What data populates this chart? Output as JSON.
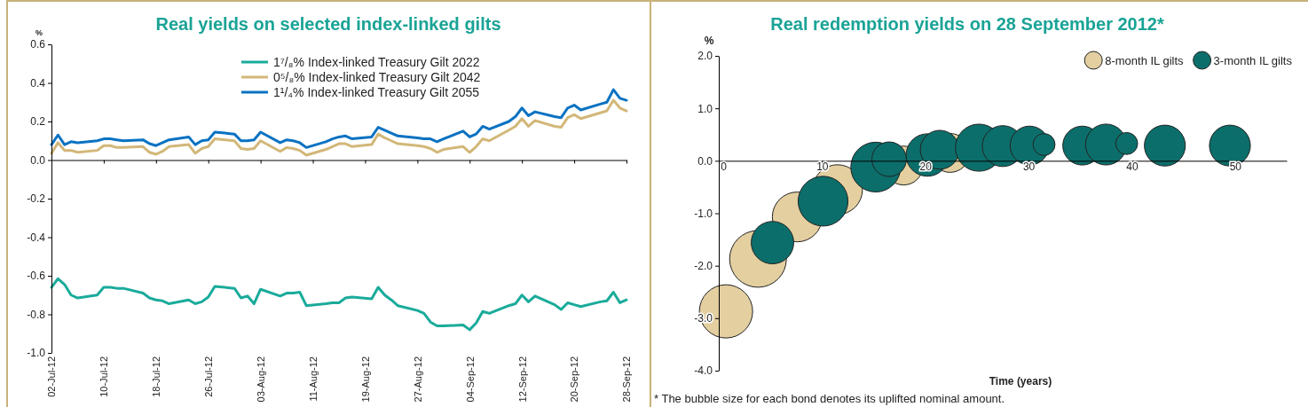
{
  "chart_data": [
    {
      "type": "line",
      "title": "Real yields on selected index-linked gilts",
      "ylabel": "%",
      "legend": "top",
      "x": [
        "2012-07-02",
        "2012-07-03",
        "2012-07-04",
        "2012-07-05",
        "2012-07-06",
        "2012-07-09",
        "2012-07-10",
        "2012-07-11",
        "2012-07-12",
        "2012-07-13",
        "2012-07-16",
        "2012-07-17",
        "2012-07-18",
        "2012-07-19",
        "2012-07-20",
        "2012-07-23",
        "2012-07-24",
        "2012-07-25",
        "2012-07-26",
        "2012-07-27",
        "2012-07-30",
        "2012-07-31",
        "2012-08-01",
        "2012-08-02",
        "2012-08-03",
        "2012-08-06",
        "2012-08-07",
        "2012-08-08",
        "2012-08-09",
        "2012-08-10",
        "2012-08-13",
        "2012-08-14",
        "2012-08-15",
        "2012-08-16",
        "2012-08-17",
        "2012-08-20",
        "2012-08-21",
        "2012-08-22",
        "2012-08-23",
        "2012-08-24",
        "2012-08-27",
        "2012-08-28",
        "2012-08-29",
        "2012-08-30",
        "2012-08-31",
        "2012-09-03",
        "2012-09-04",
        "2012-09-05",
        "2012-09-06",
        "2012-09-07",
        "2012-09-10",
        "2012-09-11",
        "2012-09-12",
        "2012-09-13",
        "2012-09-14",
        "2012-09-17",
        "2012-09-18",
        "2012-09-19",
        "2012-09-20",
        "2012-09-21",
        "2012-09-24",
        "2012-09-25",
        "2012-09-26",
        "2012-09-27",
        "2012-09-28"
      ],
      "xlim": [
        "2012-07-02",
        "2012-09-28"
      ],
      "xticks": [
        {
          "value": "2012-07-02",
          "label": "02-Jul-12"
        },
        {
          "value": "2012-07-10",
          "label": "10-Jul-12"
        },
        {
          "value": "2012-07-18",
          "label": "18-Jul-12"
        },
        {
          "value": "2012-07-26",
          "label": "26-Jul-12"
        },
        {
          "value": "2012-08-03",
          "label": "03-Aug-12"
        },
        {
          "value": "2012-08-11",
          "label": "11-Aug-12"
        },
        {
          "value": "2012-08-19",
          "label": "19-Aug-12"
        },
        {
          "value": "2012-08-27",
          "label": "27-Aug-12"
        },
        {
          "value": "2012-09-04",
          "label": "04-Sep-12"
        },
        {
          "value": "2012-09-12",
          "label": "12-Sep-12"
        },
        {
          "value": "2012-09-20",
          "label": "20-Sep-12"
        },
        {
          "value": "2012-09-28",
          "label": "28-Sep-12"
        }
      ],
      "ylim": [
        -1.0,
        0.6
      ],
      "yticks": [
        {
          "value": 0.6,
          "label": "0.6"
        },
        {
          "value": 0.4,
          "label": "0.4"
        },
        {
          "value": 0.2,
          "label": "0.2"
        },
        {
          "value": 0,
          "label": "0.0"
        },
        {
          "value": -0.2,
          "label": "-0.2"
        },
        {
          "value": -0.4,
          "label": "-0.4"
        },
        {
          "value": -0.6,
          "label": "-0.6"
        },
        {
          "value": -0.8,
          "label": "-0.8"
        },
        {
          "value": -1.0,
          "label": "-1.0"
        }
      ],
      "series": [
        {
          "name": "1⁷/₈% Index-linked Treasury Gilt 2022",
          "color": "#1aab9b",
          "values": [
            -0.66,
            -0.615,
            -0.645,
            -0.7,
            -0.715,
            -0.7,
            -0.66,
            -0.66,
            -0.665,
            -0.665,
            -0.69,
            -0.715,
            -0.725,
            -0.73,
            -0.745,
            -0.725,
            -0.745,
            -0.735,
            -0.71,
            -0.655,
            -0.665,
            -0.715,
            -0.705,
            -0.745,
            -0.67,
            -0.705,
            -0.69,
            -0.69,
            -0.685,
            -0.755,
            -0.745,
            -0.74,
            -0.74,
            -0.715,
            -0.71,
            -0.72,
            -0.66,
            -0.7,
            -0.725,
            -0.755,
            -0.78,
            -0.795,
            -0.84,
            -0.86,
            -0.86,
            -0.855,
            -0.88,
            -0.845,
            -0.785,
            -0.795,
            -0.755,
            -0.745,
            -0.7,
            -0.735,
            -0.705,
            -0.75,
            -0.775,
            -0.74,
            -0.75,
            -0.76,
            -0.735,
            -0.73,
            -0.685,
            -0.74,
            -0.725
          ]
        },
        {
          "name": "0⁵/₈% Index-linked Treasury Gilt 2042",
          "color": "#d2b779",
          "values": [
            0.035,
            0.09,
            0.05,
            0.05,
            0.04,
            0.05,
            0.075,
            0.075,
            0.065,
            0.065,
            0.07,
            0.04,
            0.03,
            0.045,
            0.07,
            0.08,
            0.035,
            0.06,
            0.07,
            0.11,
            0.1,
            0.06,
            0.055,
            0.06,
            0.1,
            0.045,
            0.065,
            0.06,
            0.05,
            0.025,
            0.055,
            0.07,
            0.085,
            0.085,
            0.07,
            0.08,
            0.135,
            0.115,
            0.1,
            0.085,
            0.075,
            0.07,
            0.06,
            0.04,
            0.055,
            0.07,
            0.04,
            0.07,
            0.11,
            0.1,
            0.155,
            0.175,
            0.215,
            0.175,
            0.205,
            0.175,
            0.17,
            0.22,
            0.235,
            0.215,
            0.245,
            0.255,
            0.31,
            0.27,
            0.255
          ]
        },
        {
          "name": "1¹/₄% Index-linked Treasury Gilt 2055",
          "color": "#0a72c2",
          "values": [
            0.08,
            0.13,
            0.08,
            0.095,
            0.09,
            0.1,
            0.11,
            0.11,
            0.105,
            0.1,
            0.105,
            0.085,
            0.075,
            0.09,
            0.105,
            0.12,
            0.08,
            0.1,
            0.105,
            0.145,
            0.135,
            0.1,
            0.1,
            0.105,
            0.145,
            0.09,
            0.105,
            0.1,
            0.09,
            0.065,
            0.095,
            0.11,
            0.12,
            0.125,
            0.11,
            0.12,
            0.17,
            0.155,
            0.14,
            0.125,
            0.115,
            0.11,
            0.11,
            0.095,
            0.11,
            0.15,
            0.12,
            0.135,
            0.175,
            0.16,
            0.2,
            0.225,
            0.27,
            0.23,
            0.25,
            0.225,
            0.22,
            0.27,
            0.285,
            0.26,
            0.29,
            0.3,
            0.365,
            0.32,
            0.31
          ]
        }
      ]
    },
    {
      "type": "bubble",
      "title": "Real redemption yields on 28 September 2012*",
      "ylabel": "%",
      "xlabel": "Time (years)",
      "legend": "top right",
      "annotations": [
        "* The bubble size for each bond denotes its uplifted nominal amount."
      ],
      "xlim": [
        0,
        55
      ],
      "xticks": [
        0,
        10,
        20,
        30,
        40,
        50
      ],
      "ylim": [
        -4.0,
        2.0
      ],
      "yticks": [
        {
          "value": 2,
          "label": "2.0"
        },
        {
          "value": 1,
          "label": "1.0"
        },
        {
          "value": 0,
          "label": "0.0"
        },
        {
          "value": -1,
          "label": "-1.0"
        },
        {
          "value": -2,
          "label": "-2.0"
        },
        {
          "value": -3,
          "label": "-3.0"
        },
        {
          "value": -4,
          "label": "-4.0"
        }
      ],
      "series": [
        {
          "name": "8-month IL gilts",
          "color": "#e3cfa0",
          "x": [
            0.7,
            3.8,
            7.6,
            11.5,
            17.9,
            22.4
          ],
          "values": [
            -2.87,
            -1.87,
            -1.07,
            -0.55,
            -0.09,
            0.15
          ],
          "sizes": [
            0.88,
            1,
            0.77,
            0.77,
            0.47,
            0.47
          ]
        },
        {
          "name": "3-month IL gilts",
          "color": "#0b6e6a",
          "x": [
            5.2,
            10.1,
            15.2,
            16.5,
            20.2,
            21.4,
            25.2,
            27.5,
            30.1,
            31.5,
            35.2,
            37.5,
            39.5,
            43.2,
            49.5
          ],
          "values": [
            -1.56,
            -0.77,
            -0.12,
            0.03,
            0.11,
            0.21,
            0.25,
            0.28,
            0.29,
            0.31,
            0.29,
            0.31,
            0.33,
            0.29,
            0.29
          ],
          "sizes": [
            0.56,
            0.77,
            0.77,
            0.37,
            0.56,
            0.47,
            0.69,
            0.52,
            0.47,
            0.15,
            0.47,
            0.52,
            0.15,
            0.52,
            0.52
          ]
        }
      ]
    }
  ]
}
